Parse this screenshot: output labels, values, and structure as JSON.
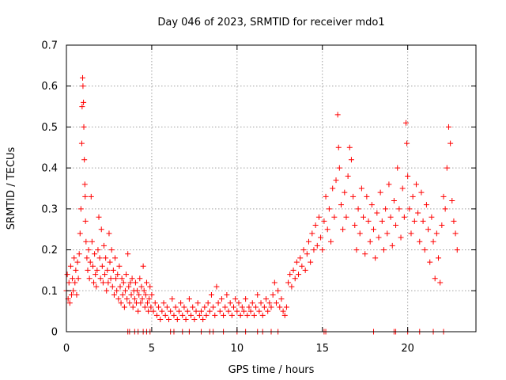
{
  "chart_data": {
    "type": "scatter",
    "title": "Day 046 of 2023, SRMTID for receiver mdo1",
    "xlabel": "GPS time / hours",
    "ylabel": "SRMTID / TECUs",
    "xlim": [
      0,
      24
    ],
    "ylim": [
      0,
      0.7
    ],
    "xticks": [
      "0",
      "5",
      "10",
      "15",
      "20"
    ],
    "yticks": [
      "0",
      "0.1",
      "0.2",
      "0.3",
      "0.4",
      "0.5",
      "0.6",
      "0.7"
    ],
    "grid": true,
    "marker": "+",
    "series_color": "#ff0000",
    "series": [
      {
        "name": "SRMTID",
        "points": [
          [
            0.0,
            0.1
          ],
          [
            0.05,
            0.14
          ],
          [
            0.1,
            0.08
          ],
          [
            0.15,
            0.12
          ],
          [
            0.2,
            0.07
          ],
          [
            0.25,
            0.16
          ],
          [
            0.3,
            0.09
          ],
          [
            0.35,
            0.13
          ],
          [
            0.4,
            0.1
          ],
          [
            0.45,
            0.18
          ],
          [
            0.5,
            0.12
          ],
          [
            0.55,
            0.15
          ],
          [
            0.6,
            0.09
          ],
          [
            0.65,
            0.17
          ],
          [
            0.7,
            0.13
          ],
          [
            0.75,
            0.19
          ],
          [
            0.8,
            0.24
          ],
          [
            0.85,
            0.3
          ],
          [
            0.9,
            0.46
          ],
          [
            0.92,
            0.55
          ],
          [
            0.95,
            0.62
          ],
          [
            0.97,
            0.6
          ],
          [
            1.0,
            0.56
          ],
          [
            1.02,
            0.5
          ],
          [
            1.05,
            0.42
          ],
          [
            1.08,
            0.36
          ],
          [
            1.1,
            0.33
          ],
          [
            1.12,
            0.27
          ],
          [
            1.15,
            0.22
          ],
          [
            1.2,
            0.18
          ],
          [
            1.25,
            0.15
          ],
          [
            1.3,
            0.2
          ],
          [
            1.35,
            0.13
          ],
          [
            1.4,
            0.17
          ],
          [
            1.45,
            0.33
          ],
          [
            1.5,
            0.22
          ],
          [
            1.55,
            0.16
          ],
          [
            1.6,
            0.12
          ],
          [
            1.65,
            0.19
          ],
          [
            1.7,
            0.14
          ],
          [
            1.75,
            0.11
          ],
          [
            1.8,
            0.15
          ],
          [
            1.85,
            0.2
          ],
          [
            1.9,
            0.28
          ],
          [
            1.95,
            0.18
          ],
          [
            2.0,
            0.13
          ],
          [
            2.05,
            0.25
          ],
          [
            2.1,
            0.16
          ],
          [
            2.15,
            0.12
          ],
          [
            2.2,
            0.21
          ],
          [
            2.25,
            0.14
          ],
          [
            2.3,
            0.18
          ],
          [
            2.35,
            0.1
          ],
          [
            2.4,
            0.15
          ],
          [
            2.45,
            0.12
          ],
          [
            2.5,
            0.24
          ],
          [
            2.55,
            0.17
          ],
          [
            2.6,
            0.13
          ],
          [
            2.65,
            0.2
          ],
          [
            2.7,
            0.11
          ],
          [
            2.75,
            0.15
          ],
          [
            2.8,
            0.09
          ],
          [
            2.85,
            0.18
          ],
          [
            2.9,
            0.13
          ],
          [
            2.95,
            0.1
          ],
          [
            3.0,
            0.14
          ],
          [
            3.05,
            0.08
          ],
          [
            3.1,
            0.16
          ],
          [
            3.15,
            0.11
          ],
          [
            3.2,
            0.07
          ],
          [
            3.25,
            0.13
          ],
          [
            3.3,
            0.09
          ],
          [
            3.35,
            0.12
          ],
          [
            3.4,
            0.06
          ],
          [
            3.45,
            0.1
          ],
          [
            3.5,
            0.14
          ],
          [
            3.55,
            0.08
          ],
          [
            3.6,
            0.19
          ],
          [
            3.65,
            0.11
          ],
          [
            3.7,
            0.07
          ],
          [
            3.75,
            0.12
          ],
          [
            3.8,
            0.09
          ],
          [
            3.85,
            0.13
          ],
          [
            3.9,
            0.06
          ],
          [
            3.95,
            0.1
          ],
          [
            4.0,
            0.08
          ],
          [
            4.05,
            0.12
          ],
          [
            4.1,
            0.07
          ],
          [
            4.15,
            0.1
          ],
          [
            4.2,
            0.05
          ],
          [
            4.25,
            0.09
          ],
          [
            4.3,
            0.13
          ],
          [
            4.35,
            0.07
          ],
          [
            4.4,
            0.11
          ],
          [
            4.45,
            0.08
          ],
          [
            4.5,
            0.16
          ],
          [
            4.55,
            0.1
          ],
          [
            4.6,
            0.06
          ],
          [
            4.65,
            0.09
          ],
          [
            4.7,
            0.12
          ],
          [
            4.75,
            0.07
          ],
          [
            4.8,
            0.05
          ],
          [
            4.85,
            0.08
          ],
          [
            4.9,
            0.11
          ],
          [
            4.95,
            0.06
          ],
          [
            5.0,
            0.09
          ],
          [
            5.1,
            0.05
          ],
          [
            5.2,
            0.07
          ],
          [
            5.3,
            0.04
          ],
          [
            5.4,
            0.06
          ],
          [
            5.5,
            0.03
          ],
          [
            5.6,
            0.05
          ],
          [
            5.7,
            0.07
          ],
          [
            5.8,
            0.04
          ],
          [
            5.9,
            0.06
          ],
          [
            6.0,
            0.03
          ],
          [
            6.1,
            0.05
          ],
          [
            6.2,
            0.08
          ],
          [
            6.3,
            0.04
          ],
          [
            6.4,
            0.06
          ],
          [
            6.5,
            0.03
          ],
          [
            6.6,
            0.05
          ],
          [
            6.7,
            0.07
          ],
          [
            6.8,
            0.04
          ],
          [
            6.9,
            0.06
          ],
          [
            7.0,
            0.03
          ],
          [
            7.1,
            0.05
          ],
          [
            7.2,
            0.08
          ],
          [
            7.3,
            0.04
          ],
          [
            7.4,
            0.06
          ],
          [
            7.5,
            0.03
          ],
          [
            7.6,
            0.05
          ],
          [
            7.7,
            0.07
          ],
          [
            7.8,
            0.04
          ],
          [
            7.9,
            0.05
          ],
          [
            8.0,
            0.03
          ],
          [
            8.1,
            0.06
          ],
          [
            8.2,
            0.04
          ],
          [
            8.3,
            0.07
          ],
          [
            8.4,
            0.05
          ],
          [
            8.5,
            0.09
          ],
          [
            8.6,
            0.06
          ],
          [
            8.7,
            0.04
          ],
          [
            8.8,
            0.11
          ],
          [
            8.9,
            0.07
          ],
          [
            9.0,
            0.05
          ],
          [
            9.1,
            0.08
          ],
          [
            9.2,
            0.04
          ],
          [
            9.3,
            0.06
          ],
          [
            9.4,
            0.09
          ],
          [
            9.5,
            0.05
          ],
          [
            9.6,
            0.07
          ],
          [
            9.7,
            0.04
          ],
          [
            9.8,
            0.06
          ],
          [
            9.9,
            0.08
          ],
          [
            10.0,
            0.05
          ],
          [
            10.1,
            0.07
          ],
          [
            10.2,
            0.04
          ],
          [
            10.3,
            0.06
          ],
          [
            10.4,
            0.05
          ],
          [
            10.5,
            0.08
          ],
          [
            10.6,
            0.04
          ],
          [
            10.7,
            0.06
          ],
          [
            10.8,
            0.05
          ],
          [
            10.9,
            0.07
          ],
          [
            11.0,
            0.04
          ],
          [
            11.1,
            0.06
          ],
          [
            11.2,
            0.09
          ],
          [
            11.3,
            0.05
          ],
          [
            11.4,
            0.07
          ],
          [
            11.5,
            0.04
          ],
          [
            11.6,
            0.06
          ],
          [
            11.7,
            0.08
          ],
          [
            11.8,
            0.05
          ],
          [
            11.9,
            0.07
          ],
          [
            12.0,
            0.06
          ],
          [
            12.1,
            0.09
          ],
          [
            12.2,
            0.12
          ],
          [
            12.3,
            0.07
          ],
          [
            12.4,
            0.1
          ],
          [
            12.5,
            0.06
          ],
          [
            12.6,
            0.08
          ],
          [
            12.7,
            0.05
          ],
          [
            12.8,
            0.04
          ],
          [
            12.9,
            0.06
          ],
          [
            13.0,
            0.12
          ],
          [
            13.1,
            0.14
          ],
          [
            13.2,
            0.11
          ],
          [
            13.3,
            0.15
          ],
          [
            13.4,
            0.13
          ],
          [
            13.5,
            0.17
          ],
          [
            13.6,
            0.14
          ],
          [
            13.7,
            0.18
          ],
          [
            13.8,
            0.16
          ],
          [
            13.9,
            0.2
          ],
          [
            14.0,
            0.15
          ],
          [
            14.1,
            0.19
          ],
          [
            14.2,
            0.22
          ],
          [
            14.3,
            0.17
          ],
          [
            14.4,
            0.24
          ],
          [
            14.5,
            0.2
          ],
          [
            14.6,
            0.26
          ],
          [
            14.7,
            0.21
          ],
          [
            14.8,
            0.28
          ],
          [
            14.9,
            0.23
          ],
          [
            15.0,
            0.2
          ],
          [
            15.1,
            0.27
          ],
          [
            15.2,
            0.33
          ],
          [
            15.3,
            0.25
          ],
          [
            15.4,
            0.3
          ],
          [
            15.5,
            0.22
          ],
          [
            15.6,
            0.35
          ],
          [
            15.7,
            0.28
          ],
          [
            15.8,
            0.37
          ],
          [
            15.9,
            0.53
          ],
          [
            15.95,
            0.45
          ],
          [
            16.0,
            0.4
          ],
          [
            16.1,
            0.31
          ],
          [
            16.2,
            0.25
          ],
          [
            16.3,
            0.34
          ],
          [
            16.4,
            0.28
          ],
          [
            16.5,
            0.38
          ],
          [
            16.6,
            0.45
          ],
          [
            16.7,
            0.42
          ],
          [
            16.8,
            0.33
          ],
          [
            16.9,
            0.26
          ],
          [
            17.0,
            0.2
          ],
          [
            17.1,
            0.3
          ],
          [
            17.2,
            0.24
          ],
          [
            17.3,
            0.35
          ],
          [
            17.4,
            0.28
          ],
          [
            17.5,
            0.19
          ],
          [
            17.6,
            0.33
          ],
          [
            17.7,
            0.27
          ],
          [
            17.8,
            0.22
          ],
          [
            17.9,
            0.31
          ],
          [
            18.0,
            0.25
          ],
          [
            18.1,
            0.18
          ],
          [
            18.2,
            0.29
          ],
          [
            18.3,
            0.23
          ],
          [
            18.4,
            0.34
          ],
          [
            18.5,
            0.27
          ],
          [
            18.6,
            0.2
          ],
          [
            18.7,
            0.3
          ],
          [
            18.8,
            0.24
          ],
          [
            18.9,
            0.36
          ],
          [
            19.0,
            0.28
          ],
          [
            19.1,
            0.21
          ],
          [
            19.2,
            0.32
          ],
          [
            19.3,
            0.26
          ],
          [
            19.4,
            0.4
          ],
          [
            19.5,
            0.3
          ],
          [
            19.6,
            0.23
          ],
          [
            19.7,
            0.35
          ],
          [
            19.8,
            0.28
          ],
          [
            19.9,
            0.51
          ],
          [
            19.95,
            0.46
          ],
          [
            20.0,
            0.38
          ],
          [
            20.1,
            0.3
          ],
          [
            20.2,
            0.24
          ],
          [
            20.3,
            0.33
          ],
          [
            20.4,
            0.27
          ],
          [
            20.5,
            0.36
          ],
          [
            20.6,
            0.29
          ],
          [
            20.7,
            0.22
          ],
          [
            20.8,
            0.34
          ],
          [
            20.9,
            0.27
          ],
          [
            21.0,
            0.2
          ],
          [
            21.1,
            0.31
          ],
          [
            21.2,
            0.25
          ],
          [
            21.3,
            0.17
          ],
          [
            21.4,
            0.28
          ],
          [
            21.5,
            0.22
          ],
          [
            21.6,
            0.13
          ],
          [
            21.7,
            0.24
          ],
          [
            21.8,
            0.18
          ],
          [
            21.9,
            0.12
          ],
          [
            22.0,
            0.26
          ],
          [
            22.1,
            0.33
          ],
          [
            22.2,
            0.3
          ],
          [
            22.3,
            0.4
          ],
          [
            22.4,
            0.5
          ],
          [
            22.5,
            0.46
          ],
          [
            22.6,
            0.32
          ],
          [
            22.7,
            0.27
          ],
          [
            22.8,
            0.24
          ],
          [
            22.9,
            0.2
          ]
        ],
        "zero_points_x": [
          3.6,
          3.7,
          4.0,
          4.2,
          4.5,
          4.7,
          4.9,
          6.1,
          6.3,
          6.8,
          7.2,
          7.9,
          8.4,
          8.6,
          9.2,
          10.0,
          10.5,
          11.2,
          11.5,
          12.0,
          12.4,
          15.1,
          15.2,
          18.0,
          19.2,
          19.3,
          20.0,
          20.7,
          21.5,
          22.1
        ]
      }
    ]
  }
}
